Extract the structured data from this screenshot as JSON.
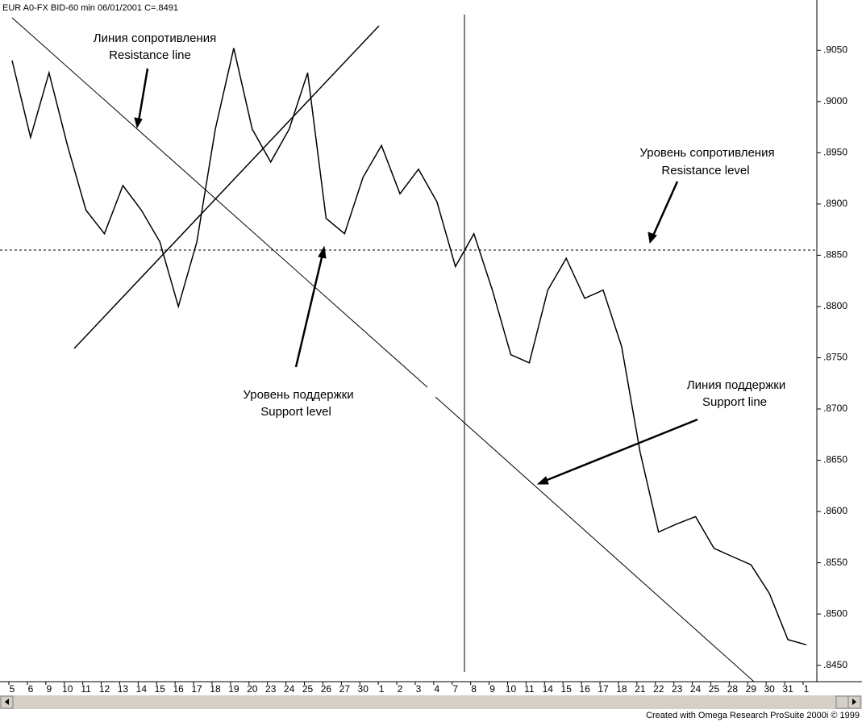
{
  "chart_data": {
    "type": "line",
    "header": "EUR A0-FX BID-60 min   06/01/2001  C=.8491",
    "footer": "Created with Omega Research ProSuite 2000i © 1999",
    "categories": [
      "5",
      "6",
      "9",
      "10",
      "11",
      "12",
      "13",
      "14",
      "15",
      "16",
      "17",
      "18",
      "19",
      "20",
      "23",
      "24",
      "25",
      "26",
      "27",
      "30",
      "1",
      "2",
      "3",
      "4",
      "7",
      "8",
      "9",
      "10",
      "11",
      "14",
      "15",
      "16",
      "17",
      "18",
      "21",
      "22",
      "23",
      "24",
      "25",
      "28",
      "29",
      "30",
      "31",
      "1"
    ],
    "series": [
      {
        "name": "EUR",
        "color": "#000000",
        "values": [
          0.904,
          0.8965,
          0.9028,
          0.8957,
          0.8894,
          0.8871,
          0.8918,
          0.8894,
          0.8863,
          0.88,
          0.8863,
          0.8973,
          0.9052,
          0.8973,
          0.8941,
          0.8973,
          0.9028,
          0.8886,
          0.8871,
          0.8926,
          0.8957,
          0.891,
          0.8934,
          0.8902,
          0.8839,
          0.8871,
          0.8816,
          0.8753,
          0.8745,
          0.8816,
          0.8847,
          0.8808,
          0.8816,
          0.8761,
          0.8658,
          0.858,
          0.8588,
          0.8595,
          0.8564,
          0.8556,
          0.8548,
          0.852,
          0.8475,
          0.847
        ]
      }
    ],
    "ylim": [
      0.8434,
      0.9099
    ],
    "yticks": [
      {
        "value": 0.845,
        "label": ".8450"
      },
      {
        "value": 0.85,
        "label": ".8500"
      },
      {
        "value": 0.855,
        "label": ".8550"
      },
      {
        "value": 0.86,
        "label": ".8600"
      },
      {
        "value": 0.865,
        "label": ".8650"
      },
      {
        "value": 0.87,
        "label": ".8700"
      },
      {
        "value": 0.875,
        "label": ".8750"
      },
      {
        "value": 0.88,
        "label": ".8800"
      },
      {
        "value": 0.885,
        "label": ".8850"
      },
      {
        "value": 0.89,
        "label": ".8900"
      },
      {
        "value": 0.895,
        "label": ".8950"
      },
      {
        "value": 0.9,
        "label": ".9000"
      },
      {
        "value": 0.905,
        "label": ".9050"
      }
    ],
    "resistance_level": 0.8855,
    "annotations": [
      "Линия сопротивления",
      "Resistance line",
      "Уровень сопротивления",
      "Resistance level",
      "Уровень поддержки",
      "Support level",
      "Линия поддержки",
      "Support line"
    ]
  }
}
